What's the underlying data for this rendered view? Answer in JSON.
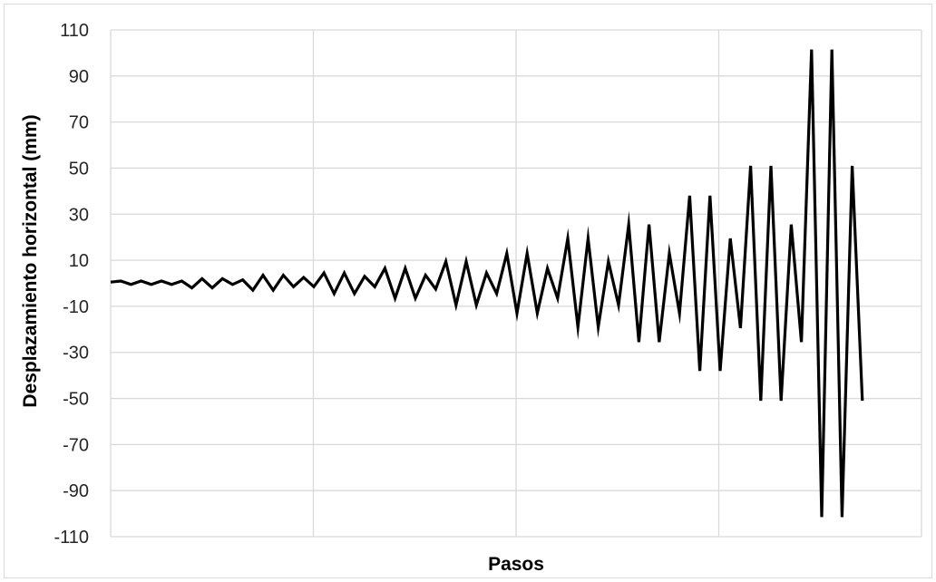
{
  "chart_data": {
    "type": "line",
    "title": "",
    "xlabel": "Pasos",
    "ylabel": "Desplazamiento horizontal (mm)",
    "ylim": [
      -110,
      110
    ],
    "yticks": [
      110,
      90,
      70,
      50,
      30,
      10,
      -10,
      -30,
      -50,
      -70,
      -90,
      -110
    ],
    "xgrid_lines": 4,
    "grid": true,
    "legend": "none",
    "line_color": "#000000",
    "series": [
      {
        "values": [
          0.5,
          1,
          -0.5,
          1,
          -0.5,
          1,
          -0.5,
          1,
          -2,
          2,
          -2,
          2,
          -0.5,
          1.5,
          -3,
          3.5,
          -3,
          3.5,
          -1.5,
          2.5,
          -1.5,
          4.5,
          -4.5,
          4.5,
          -4.5,
          3,
          -1.5,
          6.5,
          -6.5,
          6.5,
          -6.5,
          3.5,
          -2.5,
          9.5,
          -9.5,
          9.5,
          -9.5,
          4.5,
          -4.5,
          13,
          -13,
          13,
          -13,
          6.5,
          -6.5,
          19.5,
          -19,
          19.5,
          -19,
          9.5,
          -9.5,
          25.5,
          -25.5,
          25.5,
          -25.5,
          13,
          -13,
          38,
          -38,
          38,
          -38,
          19.5,
          -19.5,
          51,
          -51,
          51,
          -51,
          25.5,
          -25.5,
          101.5,
          -101.5,
          101.5,
          -101.5,
          51,
          -51
        ]
      }
    ]
  }
}
